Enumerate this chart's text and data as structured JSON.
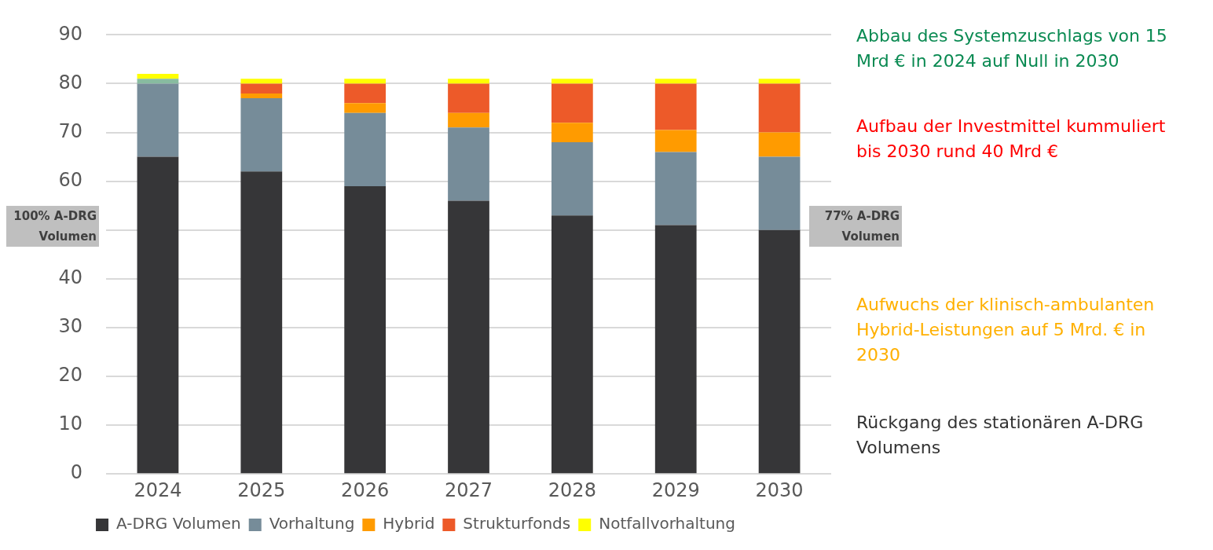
{
  "chart_data": {
    "type": "bar",
    "stacked": true,
    "categories": [
      "2024",
      "2025",
      "2026",
      "2027",
      "2028",
      "2029",
      "2030"
    ],
    "series": [
      {
        "name": "A-DRG Volumen",
        "color": "#363638",
        "values": [
          65,
          62,
          59,
          56,
          53,
          51,
          50
        ]
      },
      {
        "name": "Vorhaltung",
        "color": "#768c99",
        "values": [
          15,
          15,
          15,
          15,
          15,
          15,
          15
        ]
      },
      {
        "color": "#88bca0",
        "values": [
          1,
          0,
          0,
          0,
          0,
          0,
          0
        ]
      },
      {
        "name": "Hybrid",
        "color": "#ff9b00",
        "values": [
          0,
          1,
          2,
          3,
          4,
          4.5,
          5
        ]
      },
      {
        "name": "Strukturfonds",
        "color": "#ed5a29",
        "values": [
          0,
          2,
          4,
          6,
          8,
          9.5,
          10
        ]
      },
      {
        "name": "Notfallvorhaltung",
        "color": "#ffff00",
        "values": [
          1,
          1,
          1,
          1,
          1,
          1,
          1
        ]
      }
    ],
    "ylim": [
      0,
      90
    ],
    "yticks": [
      0,
      10,
      20,
      30,
      40,
      {
        "value": 50,
        "label": null
      },
      60,
      70,
      80,
      90
    ],
    "grid": "y",
    "legend": "bottom",
    "annotations": [
      "100% A-DRG Volumen",
      "77% A-DRG Volumen",
      "Abbau des Systemzuschlags von 15 Mrd € in 2024 auf Null in 2030",
      "Aufbau der Investmittel kummuliert bis 2030 rund 40 Mrd €",
      "Aufwuchs der klinisch-ambulanten Hybrid-Leistungen auf 5 Mrd. € in 2030",
      "Rückgang des stationären A-DRG Volumens"
    ]
  }
}
